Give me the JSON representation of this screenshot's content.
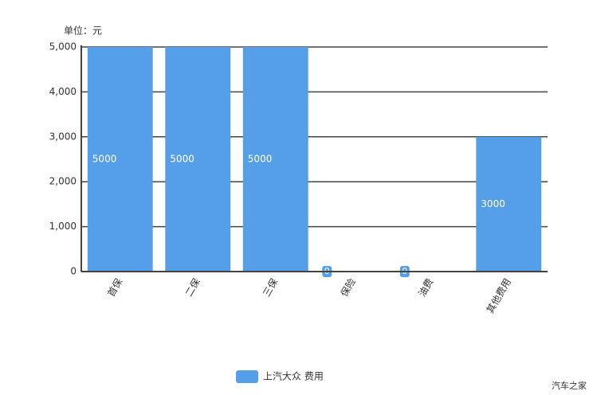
{
  "chart_data": {
    "type": "bar",
    "y_axis_label": "单位：元",
    "categories": [
      "首保",
      "二保",
      "三保",
      "保险",
      "油费",
      "其他费用"
    ],
    "series": [
      {
        "name": "上汽大众 费用",
        "color": "#559ee8",
        "values": [
          5000,
          5000,
          5000,
          0,
          0,
          3000
        ]
      }
    ],
    "ylim": [
      0,
      5000
    ],
    "yticks": [
      0,
      {
        "value": 1000,
        "label": "1,000"
      },
      {
        "value": 2000,
        "label": "2,000"
      },
      {
        "value": 3000,
        "label": "3,000"
      },
      {
        "value": 4000,
        "label": "4,000"
      },
      {
        "value": 5000,
        "label": "5,000"
      }
    ],
    "grid": true,
    "watermark": "汽车之家"
  }
}
